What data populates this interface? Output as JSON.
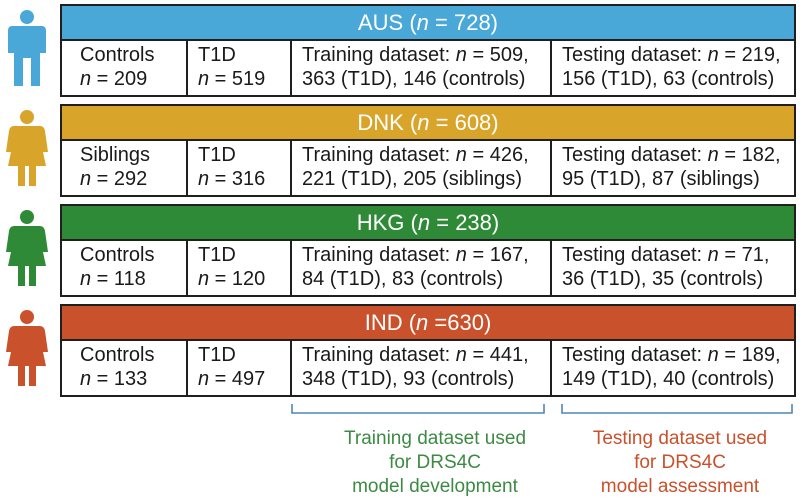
{
  "colors": {
    "AUS": "#4aa8d8",
    "DNK": "#d9a42a",
    "HKG": "#2f8a38",
    "IND": "#c9512c",
    "training_label": "#3c8a43",
    "testing_label": "#c9512c",
    "bracket": "#4f86b8"
  },
  "icons": [
    "person-icon-blue",
    "person-icon-gold",
    "person-icon-green",
    "person-icon-red"
  ],
  "cohorts": [
    {
      "code": "AUS",
      "header_prefix": "AUS (",
      "n_label": "n",
      "header_suffix": " = 728)",
      "group_label": "Controls",
      "group_n": " = 209",
      "t1d_label": "T1D",
      "t1d_n": " = 519",
      "train_l1": "Training dataset: ",
      "train_n": " = 509,",
      "train_l2": "363 (T1D), 146 (controls)",
      "test_l1": "Testing dataset: ",
      "test_n": " = 219,",
      "test_l2": "156 (T1D), 63 (controls)"
    },
    {
      "code": "DNK",
      "header_prefix": "DNK (",
      "n_label": "n",
      "header_suffix": " = 608)",
      "group_label": "Siblings",
      "group_n": " = 292",
      "t1d_label": "T1D",
      "t1d_n": " = 316",
      "train_l1": "Training dataset: ",
      "train_n": " = 426,",
      "train_l2": "221 (T1D), 205 (siblings)",
      "test_l1": "Testing dataset: ",
      "test_n": " = 182,",
      "test_l2": "95 (T1D), 87 (siblings)"
    },
    {
      "code": "HKG",
      "header_prefix": "HKG (",
      "n_label": "n",
      "header_suffix": " = 238)",
      "group_label": "Controls",
      "group_n": " = 118",
      "t1d_label": "T1D",
      "t1d_n": " = 120",
      "train_l1": "Training dataset: ",
      "train_n": " = 167,",
      "train_l2": "84 (T1D), 83 (controls)",
      "test_l1": "Testing dataset: ",
      "test_n": " = 71,",
      "test_l2": "36 (T1D), 35 (controls)"
    },
    {
      "code": "IND",
      "header_prefix": "IND (",
      "n_label": "n",
      "header_suffix": " =630)",
      "group_label": "Controls",
      "group_n": " = 133",
      "t1d_label": "T1D",
      "t1d_n": " = 497",
      "train_l1": "Training dataset: ",
      "train_n": " = 441,",
      "train_l2": "348 (T1D), 93 (controls)",
      "test_l1": "Testing dataset: ",
      "test_n": " = 189,",
      "test_l2": "149 (T1D), 40 (controls)"
    }
  ],
  "footer": {
    "training": [
      "Training dataset used",
      "for DRS4C",
      "model development"
    ],
    "testing": [
      "Testing dataset used",
      "for DRS4C",
      "model assessment"
    ]
  }
}
